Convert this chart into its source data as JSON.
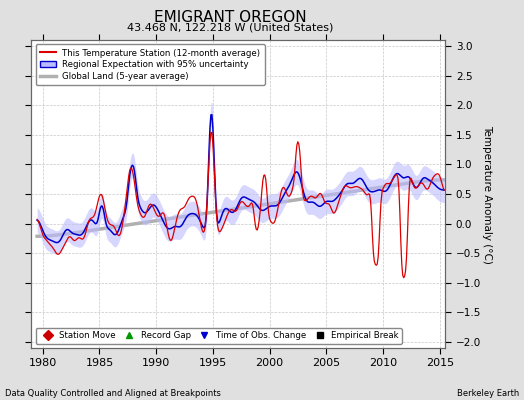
{
  "title": "EMIGRANT OREGON",
  "subtitle": "43.468 N, 122.218 W (United States)",
  "xlabel_left": "Data Quality Controlled and Aligned at Breakpoints",
  "xlabel_right": "Berkeley Earth",
  "ylabel": "Temperature Anomaly (°C)",
  "xlim": [
    1979.0,
    2015.5
  ],
  "ylim": [
    -2.1,
    3.1
  ],
  "yticks": [
    -2,
    -1.5,
    -1,
    -0.5,
    0,
    0.5,
    1,
    1.5,
    2,
    2.5,
    3
  ],
  "xticks": [
    1980,
    1985,
    1990,
    1995,
    2000,
    2005,
    2010,
    2015
  ],
  "bg_color": "#e0e0e0",
  "plot_bg_color": "#ffffff",
  "grid_color": "#c8c8c8",
  "red_color": "#dd0000",
  "blue_color": "#0000cc",
  "blue_fill_color": "#bbbbff",
  "gray_color": "#b0b0b0",
  "legend_entries": [
    "This Temperature Station (12-month average)",
    "Regional Expectation with 95% uncertainty",
    "Global Land (5-year average)"
  ],
  "legend_markers": [
    {
      "label": "Station Move",
      "color": "#cc0000",
      "marker": "D"
    },
    {
      "label": "Record Gap",
      "color": "#009900",
      "marker": "^"
    },
    {
      "label": "Time of Obs. Change",
      "color": "#0000cc",
      "marker": "v"
    },
    {
      "label": "Empirical Break",
      "color": "#000000",
      "marker": "s"
    }
  ]
}
